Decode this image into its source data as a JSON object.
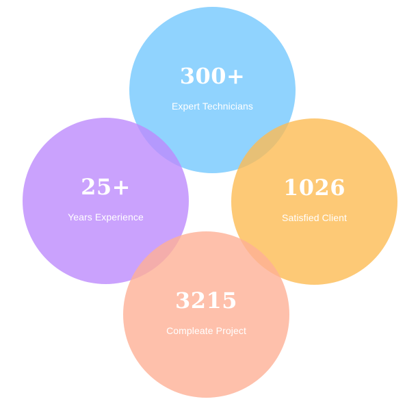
{
  "stats": [
    {
      "number": "300+",
      "label": "Expert Technicians",
      "color": "#84cefe"
    },
    {
      "number": "25+",
      "label": "Years Experience",
      "color": "#bd8bfd"
    },
    {
      "number": "1026",
      "label": "Satisfied Client",
      "color": "#fcbc54"
    },
    {
      "number": "3215",
      "label": "Compleate Project",
      "color": "#feb096"
    }
  ]
}
